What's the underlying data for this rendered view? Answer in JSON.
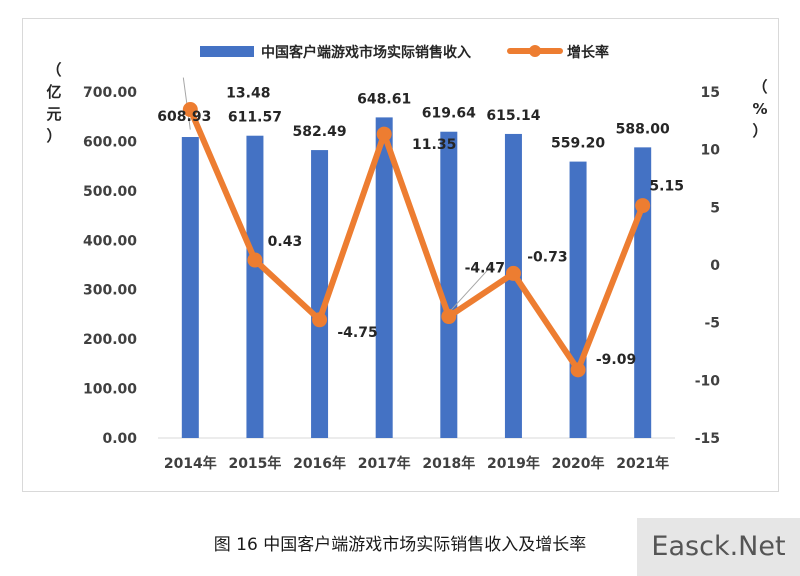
{
  "chart_data": {
    "type": "bar+line",
    "categories": [
      "2014年",
      "2015年",
      "2016年",
      "2017年",
      "2018年",
      "2019年",
      "2020年",
      "2021年"
    ],
    "series": [
      {
        "name": "中国客户端游戏市场实际销售收入",
        "type": "bar",
        "axis": "left",
        "color": "#4472c4",
        "values": [
          608.93,
          611.57,
          582.49,
          648.61,
          619.64,
          615.14,
          559.2,
          588.0
        ],
        "labels": [
          "608.93",
          "611.57",
          "582.49",
          "648.61",
          "619.64",
          "615.14",
          "559.20",
          "588.00"
        ]
      },
      {
        "name": "增长率",
        "type": "line",
        "axis": "right",
        "color": "#ed7d31",
        "values": [
          13.48,
          0.43,
          -4.75,
          11.35,
          -4.47,
          -0.73,
          -9.09,
          5.15
        ],
        "labels": [
          "13.48",
          "0.43",
          "-4.75",
          "11.35",
          "-4.47",
          "-0.73",
          "-9.09",
          "5.15"
        ]
      }
    ],
    "y_left": {
      "label_chars": [
        "（",
        "亿",
        "元",
        "）"
      ],
      "ylim": [
        0,
        700
      ],
      "ticks": [
        "0.00",
        "100.00",
        "200.00",
        "300.00",
        "400.00",
        "500.00",
        "600.00",
        "700.00"
      ]
    },
    "y_right": {
      "label_chars": [
        "（",
        "%",
        "）"
      ],
      "ylim": [
        -15,
        15
      ],
      "ticks": [
        "-15",
        "-10",
        "-5",
        "0",
        "5",
        "10",
        "15"
      ]
    },
    "legend_position": "top"
  },
  "caption": "图 16 中国客户端游戏市场实际销售收入及增长率",
  "watermark": "Easck.Net"
}
